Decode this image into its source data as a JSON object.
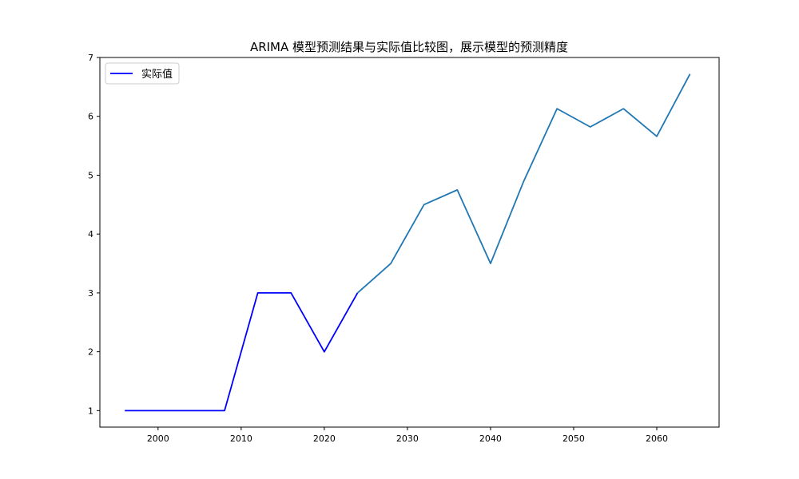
{
  "chart_data": {
    "type": "line",
    "title": "ARIMA 模型预测结果与实际值比较图，展示模型的预测精度",
    "xlabel": "",
    "ylabel": "",
    "xlim": [
      1993,
      2067.5
    ],
    "ylim": [
      0.72,
      7
    ],
    "x_ticks": [
      2000,
      2010,
      2020,
      2030,
      2040,
      2050,
      2060
    ],
    "y_ticks": [
      1,
      2,
      3,
      4,
      5,
      6,
      7
    ],
    "grid": false,
    "legend": {
      "position": "top-left",
      "entries": [
        {
          "label": "实际值",
          "color": "#0000ff"
        }
      ]
    },
    "series": [
      {
        "name": "实际值",
        "color": "#0000ff",
        "x": [
          1996,
          2000,
          2004,
          2008,
          2012,
          2016,
          2020,
          2024
        ],
        "y": [
          1,
          1,
          1,
          1,
          3,
          3,
          2,
          3
        ]
      },
      {
        "color": "#1f77b4",
        "x": [
          2024,
          2028,
          2032,
          2036,
          2040,
          2044,
          2048,
          2052,
          2056,
          2060,
          2064
        ],
        "y": [
          3,
          3.5,
          4.5,
          4.75,
          3.5,
          4.9,
          6.13,
          5.82,
          6.13,
          5.66,
          6.72
        ]
      }
    ]
  }
}
